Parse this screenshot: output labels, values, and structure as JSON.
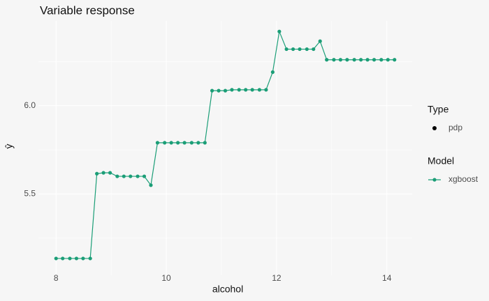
{
  "chart_data": {
    "type": "line",
    "title": "Variable response",
    "xlabel": "alcohol",
    "ylabel": "ŷ",
    "x": [
      8.0,
      8.12,
      8.25,
      8.37,
      8.49,
      8.62,
      8.74,
      8.86,
      8.98,
      9.11,
      9.23,
      9.35,
      9.48,
      9.6,
      9.72,
      9.84,
      9.97,
      10.09,
      10.21,
      10.33,
      10.46,
      10.58,
      10.7,
      10.83,
      10.95,
      11.07,
      11.19,
      11.32,
      11.44,
      11.56,
      11.69,
      11.81,
      11.93,
      12.05,
      12.18,
      12.3,
      12.42,
      12.55,
      12.67,
      12.79,
      12.91,
      13.04,
      13.16,
      13.28,
      13.41,
      13.53,
      13.65,
      13.77,
      13.9,
      14.02,
      14.14
    ],
    "series": [
      {
        "name": "xgboost",
        "color": "#1b9e77",
        "values": [
          5.135,
          5.135,
          5.135,
          5.135,
          5.135,
          5.135,
          5.615,
          5.62,
          5.62,
          5.6,
          5.6,
          5.6,
          5.6,
          5.6,
          5.55,
          5.79,
          5.79,
          5.79,
          5.79,
          5.79,
          5.79,
          5.79,
          5.79,
          6.085,
          6.085,
          6.085,
          6.09,
          6.09,
          6.09,
          6.09,
          6.09,
          6.09,
          6.19,
          6.42,
          6.32,
          6.32,
          6.32,
          6.32,
          6.32,
          6.365,
          6.26,
          6.26,
          6.26,
          6.26,
          6.26,
          6.26,
          6.26,
          6.26,
          6.26,
          6.26,
          6.26
        ]
      }
    ],
    "legend": {
      "type_title": "Type",
      "type_label": "pdp",
      "model_title": "Model"
    },
    "xlim": [
      7.68,
      14.46
    ],
    "ylim": [
      5.04,
      6.48
    ],
    "xticks": [
      8,
      10,
      12,
      14
    ],
    "yticks": [
      {
        "value": 5.5,
        "label": "5.5"
      },
      {
        "value": 6.0,
        "label": "6.0"
      }
    ],
    "minor_xticks": [
      9,
      11,
      13
    ],
    "minor_yticks": [
      5.25,
      5.75,
      6.25
    ],
    "grid": true
  }
}
